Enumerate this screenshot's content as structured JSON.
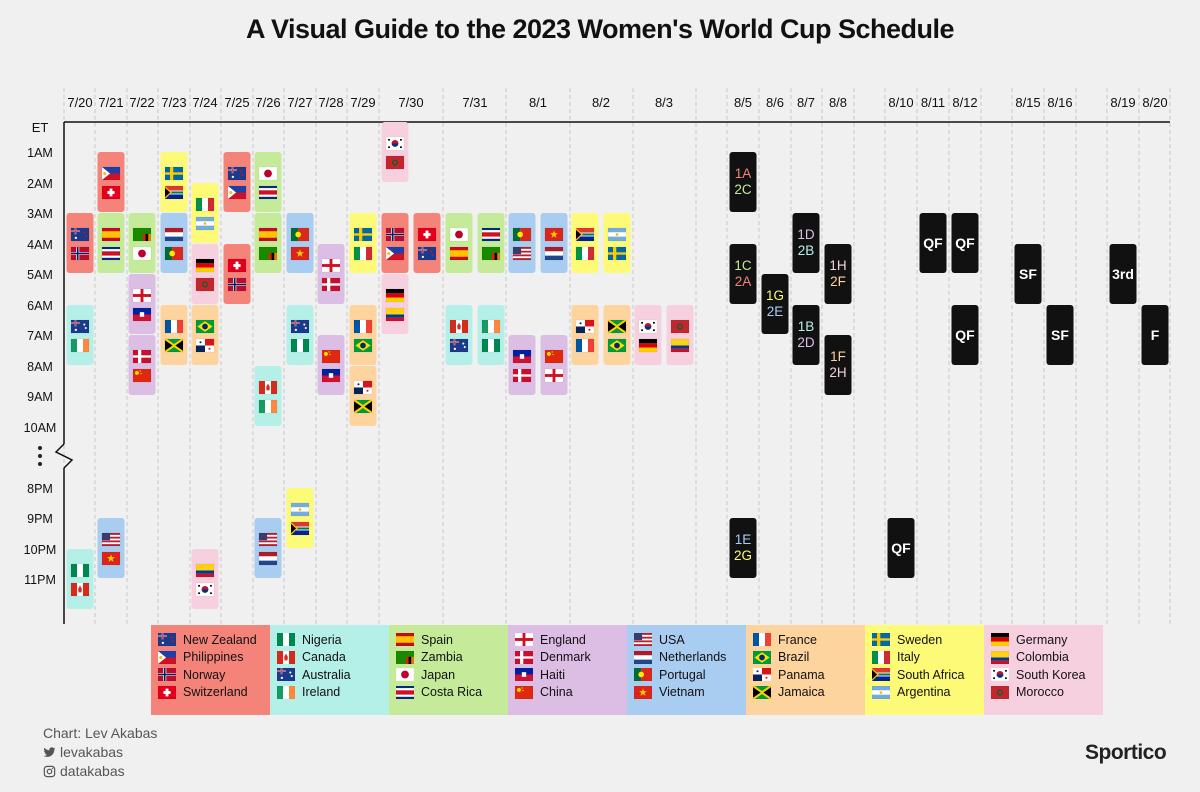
{
  "title": "A Visual Guide to the 2023 Women's World Cup Schedule",
  "credits": {
    "chart": "Chart: Lev Akabas",
    "twitter": "levakabas",
    "instagram": "datakabas"
  },
  "brand": "Sportico",
  "colors": {
    "A": "#f4837a",
    "B": "#b5f0e8",
    "C": "#c5eb9a",
    "D": "#dcbde4",
    "E": "#a8cdf0",
    "F": "#fdd39e",
    "G": "#fdfa78",
    "H": "#f7d0df",
    "KO": "#111111",
    "background": "#f0f0f0"
  },
  "legend": [
    {
      "group": "A",
      "teams": [
        "New Zealand",
        "Philippines",
        "Norway",
        "Switzerland"
      ]
    },
    {
      "group": "B",
      "teams": [
        "Nigeria",
        "Canada",
        "Australia",
        "Ireland"
      ]
    },
    {
      "group": "C",
      "teams": [
        "Spain",
        "Zambia",
        "Japan",
        "Costa Rica"
      ]
    },
    {
      "group": "D",
      "teams": [
        "England",
        "Denmark",
        "Haiti",
        "China"
      ]
    },
    {
      "group": "E",
      "teams": [
        "USA",
        "Netherlands",
        "Portugal",
        "Vietnam"
      ]
    },
    {
      "group": "F",
      "teams": [
        "France",
        "Brazil",
        "Panama",
        "Jamaica"
      ]
    },
    {
      "group": "G",
      "teams": [
        "Sweden",
        "Italy",
        "South Africa",
        "Argentina"
      ]
    },
    {
      "group": "H",
      "teams": [
        "Germany",
        "Colombia",
        "South Korea",
        "Morocco"
      ]
    }
  ],
  "chart_data": {
    "type": "table",
    "time_zone_label": "ET",
    "dates": [
      "7/20",
      "7/21",
      "7/22",
      "7/23",
      "7/24",
      "7/25",
      "7/26",
      "7/27",
      "7/28",
      "7/29",
      "7/30",
      "7/31",
      "8/1",
      "8/2",
      "8/3",
      "8/5",
      "8/6",
      "8/7",
      "8/8",
      "8/10",
      "8/11",
      "8/12",
      "8/15",
      "8/16",
      "8/19",
      "8/20"
    ],
    "time_labels": [
      "1AM",
      "2AM",
      "3AM",
      "4AM",
      "5AM",
      "6AM",
      "7AM",
      "8AM",
      "9AM",
      "10AM",
      "8PM",
      "9PM",
      "10PM",
      "11PM"
    ],
    "group_stage_matches": [
      {
        "date": "7/20",
        "time": "3AM",
        "group": "A",
        "teams": [
          "New Zealand",
          "Norway"
        ]
      },
      {
        "date": "7/20",
        "time": "6AM",
        "group": "B",
        "teams": [
          "Australia",
          "Ireland"
        ]
      },
      {
        "date": "7/20",
        "time": "10PM",
        "group": "B",
        "teams": [
          "Nigeria",
          "Canada"
        ]
      },
      {
        "date": "7/21",
        "time": "1AM",
        "group": "A",
        "teams": [
          "Philippines",
          "Switzerland"
        ]
      },
      {
        "date": "7/21",
        "time": "3AM",
        "group": "C",
        "teams": [
          "Spain",
          "Costa Rica"
        ]
      },
      {
        "date": "7/21",
        "time": "9PM",
        "group": "E",
        "teams": [
          "USA",
          "Vietnam"
        ]
      },
      {
        "date": "7/22",
        "time": "3AM",
        "group": "C",
        "teams": [
          "Zambia",
          "Japan"
        ]
      },
      {
        "date": "7/22",
        "time": "5AM",
        "group": "D",
        "teams": [
          "England",
          "Haiti"
        ]
      },
      {
        "date": "7/22",
        "time": "7AM",
        "group": "D",
        "teams": [
          "Denmark",
          "China"
        ]
      },
      {
        "date": "7/23",
        "time": "1AM",
        "group": "G",
        "teams": [
          "Sweden",
          "South Africa"
        ]
      },
      {
        "date": "7/23",
        "time": "3AM",
        "group": "E",
        "teams": [
          "Netherlands",
          "Portugal"
        ]
      },
      {
        "date": "7/23",
        "time": "6AM",
        "group": "F",
        "teams": [
          "France",
          "Jamaica"
        ]
      },
      {
        "date": "7/24",
        "time": "2AM",
        "group": "G",
        "teams": [
          "Italy",
          "Argentina"
        ]
      },
      {
        "date": "7/24",
        "time": "4AM",
        "group": "H",
        "teams": [
          "Germany",
          "Morocco"
        ]
      },
      {
        "date": "7/24",
        "time": "6AM",
        "group": "F",
        "teams": [
          "Brazil",
          "Panama"
        ]
      },
      {
        "date": "7/24",
        "time": "10PM",
        "group": "H",
        "teams": [
          "Colombia",
          "South Korea"
        ]
      },
      {
        "date": "7/25",
        "time": "1AM",
        "group": "A",
        "teams": [
          "New Zealand",
          "Philippines"
        ]
      },
      {
        "date": "7/25",
        "time": "4AM",
        "group": "A",
        "teams": [
          "Switzerland",
          "Norway"
        ]
      },
      {
        "date": "7/26",
        "time": "1AM",
        "group": "C",
        "teams": [
          "Japan",
          "Costa Rica"
        ]
      },
      {
        "date": "7/26",
        "time": "3AM",
        "group": "C",
        "teams": [
          "Spain",
          "Zambia"
        ]
      },
      {
        "date": "7/26",
        "time": "8AM",
        "group": "B",
        "teams": [
          "Canada",
          "Ireland"
        ]
      },
      {
        "date": "7/26",
        "time": "9PM",
        "group": "E",
        "teams": [
          "USA",
          "Netherlands"
        ]
      },
      {
        "date": "7/27",
        "time": "3AM",
        "group": "E",
        "teams": [
          "Portugal",
          "Vietnam"
        ]
      },
      {
        "date": "7/27",
        "time": "6AM",
        "group": "B",
        "teams": [
          "Australia",
          "Nigeria"
        ]
      },
      {
        "date": "7/27",
        "time": "8PM",
        "group": "G",
        "teams": [
          "Argentina",
          "South Africa"
        ]
      },
      {
        "date": "7/28",
        "time": "4AM",
        "group": "D",
        "teams": [
          "England",
          "Denmark"
        ]
      },
      {
        "date": "7/28",
        "time": "7AM",
        "group": "D",
        "teams": [
          "China",
          "Haiti"
        ]
      },
      {
        "date": "7/29",
        "time": "3AM",
        "group": "G",
        "teams": [
          "Sweden",
          "Italy"
        ]
      },
      {
        "date": "7/29",
        "time": "6AM",
        "group": "F",
        "teams": [
          "France",
          "Brazil"
        ]
      },
      {
        "date": "7/29",
        "time": "8AM",
        "group": "F",
        "teams": [
          "Panama",
          "Jamaica"
        ]
      },
      {
        "date": "7/30",
        "time": "12AM",
        "group": "H",
        "teams": [
          "South Korea",
          "Morocco"
        ]
      },
      {
        "date": "7/30",
        "time": "3AM",
        "group": "A",
        "teams": [
          "Norway",
          "Philippines"
        ]
      },
      {
        "date": "7/30",
        "time": "3AM",
        "group": "A",
        "teams": [
          "Switzerland",
          "New Zealand"
        ]
      },
      {
        "date": "7/30",
        "time": "5AM",
        "group": "H",
        "teams": [
          "Germany",
          "Colombia"
        ]
      },
      {
        "date": "7/31",
        "time": "3AM",
        "group": "C",
        "teams": [
          "Japan",
          "Spain"
        ]
      },
      {
        "date": "7/31",
        "time": "3AM",
        "group": "C",
        "teams": [
          "Costa Rica",
          "Zambia"
        ]
      },
      {
        "date": "7/31",
        "time": "6AM",
        "group": "B",
        "teams": [
          "Canada",
          "Australia"
        ]
      },
      {
        "date": "7/31",
        "time": "6AM",
        "group": "B",
        "teams": [
          "Ireland",
          "Nigeria"
        ]
      },
      {
        "date": "8/1",
        "time": "3AM",
        "group": "E",
        "teams": [
          "Portugal",
          "USA"
        ]
      },
      {
        "date": "8/1",
        "time": "3AM",
        "group": "E",
        "teams": [
          "Vietnam",
          "Netherlands"
        ]
      },
      {
        "date": "8/1",
        "time": "7AM",
        "group": "D",
        "teams": [
          "Haiti",
          "Denmark"
        ]
      },
      {
        "date": "8/1",
        "time": "7AM",
        "group": "D",
        "teams": [
          "China",
          "England"
        ]
      },
      {
        "date": "8/2",
        "time": "3AM",
        "group": "G",
        "teams": [
          "South Africa",
          "Italy"
        ]
      },
      {
        "date": "8/2",
        "time": "3AM",
        "group": "G",
        "teams": [
          "Argentina",
          "Sweden"
        ]
      },
      {
        "date": "8/2",
        "time": "6AM",
        "group": "F",
        "teams": [
          "Panama",
          "France"
        ]
      },
      {
        "date": "8/2",
        "time": "6AM",
        "group": "F",
        "teams": [
          "Jamaica",
          "Brazil"
        ]
      },
      {
        "date": "8/3",
        "time": "6AM",
        "group": "H",
        "teams": [
          "South Korea",
          "Germany"
        ]
      },
      {
        "date": "8/3",
        "time": "6AM",
        "group": "H",
        "teams": [
          "Morocco",
          "Colombia"
        ]
      }
    ],
    "knockout_matches": [
      {
        "date": "8/5",
        "time": "1AM",
        "label": [
          "1A",
          "2C"
        ]
      },
      {
        "date": "8/5",
        "time": "4AM",
        "label": [
          "1C",
          "2A"
        ]
      },
      {
        "date": "8/5",
        "time": "9PM",
        "label": [
          "1E",
          "2G"
        ]
      },
      {
        "date": "8/6",
        "time": "5AM",
        "label": [
          "1G",
          "2E"
        ]
      },
      {
        "date": "8/7",
        "time": "3AM",
        "label": [
          "1D",
          "2B"
        ]
      },
      {
        "date": "8/7",
        "time": "6AM",
        "label": [
          "1B",
          "2D"
        ]
      },
      {
        "date": "8/8",
        "time": "4AM",
        "label": [
          "1H",
          "2F"
        ]
      },
      {
        "date": "8/8",
        "time": "7AM",
        "label": [
          "1F",
          "2H"
        ]
      },
      {
        "date": "8/10",
        "time": "9PM",
        "label": [
          "QF"
        ]
      },
      {
        "date": "8/11",
        "time": "3AM",
        "label": [
          "QF"
        ]
      },
      {
        "date": "8/12",
        "time": "3AM",
        "label": [
          "QF"
        ]
      },
      {
        "date": "8/12",
        "time": "6AM",
        "label": [
          "QF"
        ]
      },
      {
        "date": "8/15",
        "time": "4AM",
        "label": [
          "SF"
        ]
      },
      {
        "date": "8/16",
        "time": "6AM",
        "label": [
          "SF"
        ]
      },
      {
        "date": "8/19",
        "time": "4AM",
        "label": [
          "3rd"
        ]
      },
      {
        "date": "8/20",
        "time": "6AM",
        "label": [
          "F"
        ]
      }
    ]
  }
}
